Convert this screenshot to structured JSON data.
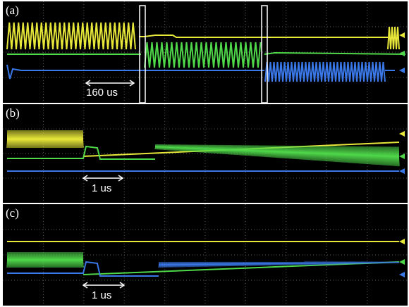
{
  "panels": [
    {
      "label": "(a)",
      "scale": "160 us"
    },
    {
      "label": "(b)",
      "scale": "1 us"
    },
    {
      "label": "(c)",
      "scale": "1 us"
    }
  ]
}
